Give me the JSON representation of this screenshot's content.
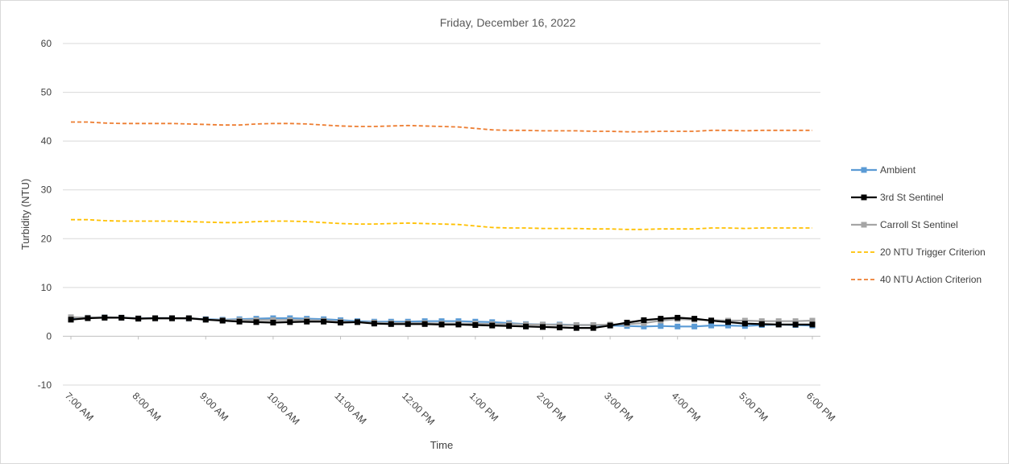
{
  "chart_data": {
    "type": "line",
    "title": "Friday, December 16, 2022",
    "xlabel": "Time",
    "ylabel": "Turbidity (NTU)",
    "ylim": [
      -10,
      60
    ],
    "yticks": [
      "-10",
      "0",
      "10",
      "20",
      "30",
      "40",
      "50",
      "60"
    ],
    "ytick_values": [
      -10,
      0,
      10,
      20,
      30,
      40,
      50,
      60
    ],
    "x_tick_labels": [
      "7:00 AM",
      "8:00 AM",
      "9:00 AM",
      "10:00 AM",
      "11:00 AM",
      "12:00 PM",
      "1:00 PM",
      "2:00 PM",
      "3:00 PM",
      "4:00 PM",
      "5:00 PM",
      "6:00 PM"
    ],
    "x_start": "7:00 AM",
    "x_end": "6:00 PM",
    "x_interval_minutes": 15,
    "grid": "horizontal",
    "legend_position": "right",
    "series": [
      {
        "name": "Ambient",
        "color": "#5b9bd5",
        "style": "solid-square",
        "values": [
          3.8,
          3.8,
          3.9,
          3.8,
          3.7,
          3.7,
          3.7,
          3.6,
          3.5,
          3.4,
          3.5,
          3.6,
          3.7,
          3.7,
          3.6,
          3.5,
          3.3,
          3.1,
          3.0,
          3.0,
          3.0,
          3.1,
          3.1,
          3.1,
          3.0,
          2.9,
          2.7,
          2.5,
          2.4,
          2.4,
          2.3,
          2.3,
          2.2,
          2.1,
          2.0,
          2.1,
          2.0,
          2.0,
          2.2,
          2.2,
          2.1,
          2.3,
          2.4,
          2.3,
          2.2
        ]
      },
      {
        "name": "3rd St Sentinel",
        "color": "#000000",
        "style": "solid-square",
        "values": [
          3.4,
          3.7,
          3.8,
          3.8,
          3.6,
          3.7,
          3.7,
          3.7,
          3.4,
          3.2,
          3.0,
          2.9,
          2.8,
          2.9,
          3.0,
          3.0,
          2.8,
          2.9,
          2.6,
          2.5,
          2.5,
          2.5,
          2.4,
          2.4,
          2.3,
          2.2,
          2.1,
          2.0,
          1.9,
          1.8,
          1.7,
          1.7,
          2.2,
          2.8,
          3.3,
          3.6,
          3.8,
          3.6,
          3.2,
          2.9,
          2.6,
          2.5,
          2.4,
          2.4,
          2.4
        ]
      },
      {
        "name": "Carroll St Sentinel",
        "color": "#a5a5a5",
        "style": "solid-square",
        "values": [
          3.9,
          3.8,
          3.9,
          3.8,
          3.7,
          3.6,
          3.6,
          3.6,
          3.4,
          3.3,
          3.3,
          3.3,
          3.3,
          3.3,
          3.3,
          3.2,
          3.0,
          2.9,
          2.8,
          2.7,
          2.7,
          2.7,
          2.6,
          2.6,
          2.6,
          2.5,
          2.5,
          2.4,
          2.4,
          2.3,
          2.3,
          2.3,
          2.4,
          2.5,
          2.7,
          3.2,
          3.5,
          3.4,
          3.3,
          3.2,
          3.2,
          3.1,
          3.1,
          3.1,
          3.2
        ]
      },
      {
        "name": "20 NTU Trigger Criterion",
        "color": "#ffc000",
        "style": "dashed",
        "values": [
          23.9,
          23.9,
          23.7,
          23.6,
          23.6,
          23.6,
          23.6,
          23.5,
          23.4,
          23.3,
          23.3,
          23.5,
          23.6,
          23.6,
          23.5,
          23.3,
          23.1,
          23.0,
          23.0,
          23.1,
          23.2,
          23.1,
          23.0,
          22.9,
          22.6,
          22.3,
          22.2,
          22.2,
          22.1,
          22.1,
          22.1,
          22.0,
          22.0,
          21.9,
          21.9,
          22.0,
          22.0,
          22.0,
          22.2,
          22.2,
          22.1,
          22.2,
          22.2,
          22.2,
          22.2
        ]
      },
      {
        "name": "40 NTU Action Criterion",
        "color": "#ed7d31",
        "style": "dashed",
        "values": [
          43.9,
          43.9,
          43.7,
          43.6,
          43.6,
          43.6,
          43.6,
          43.5,
          43.4,
          43.3,
          43.3,
          43.5,
          43.6,
          43.6,
          43.5,
          43.3,
          43.1,
          43.0,
          43.0,
          43.1,
          43.2,
          43.1,
          43.0,
          42.9,
          42.6,
          42.3,
          42.2,
          42.2,
          42.1,
          42.1,
          42.1,
          42.0,
          42.0,
          41.9,
          41.9,
          42.0,
          42.0,
          42.0,
          42.2,
          42.2,
          42.1,
          42.2,
          42.2,
          42.2,
          42.2
        ]
      }
    ]
  }
}
